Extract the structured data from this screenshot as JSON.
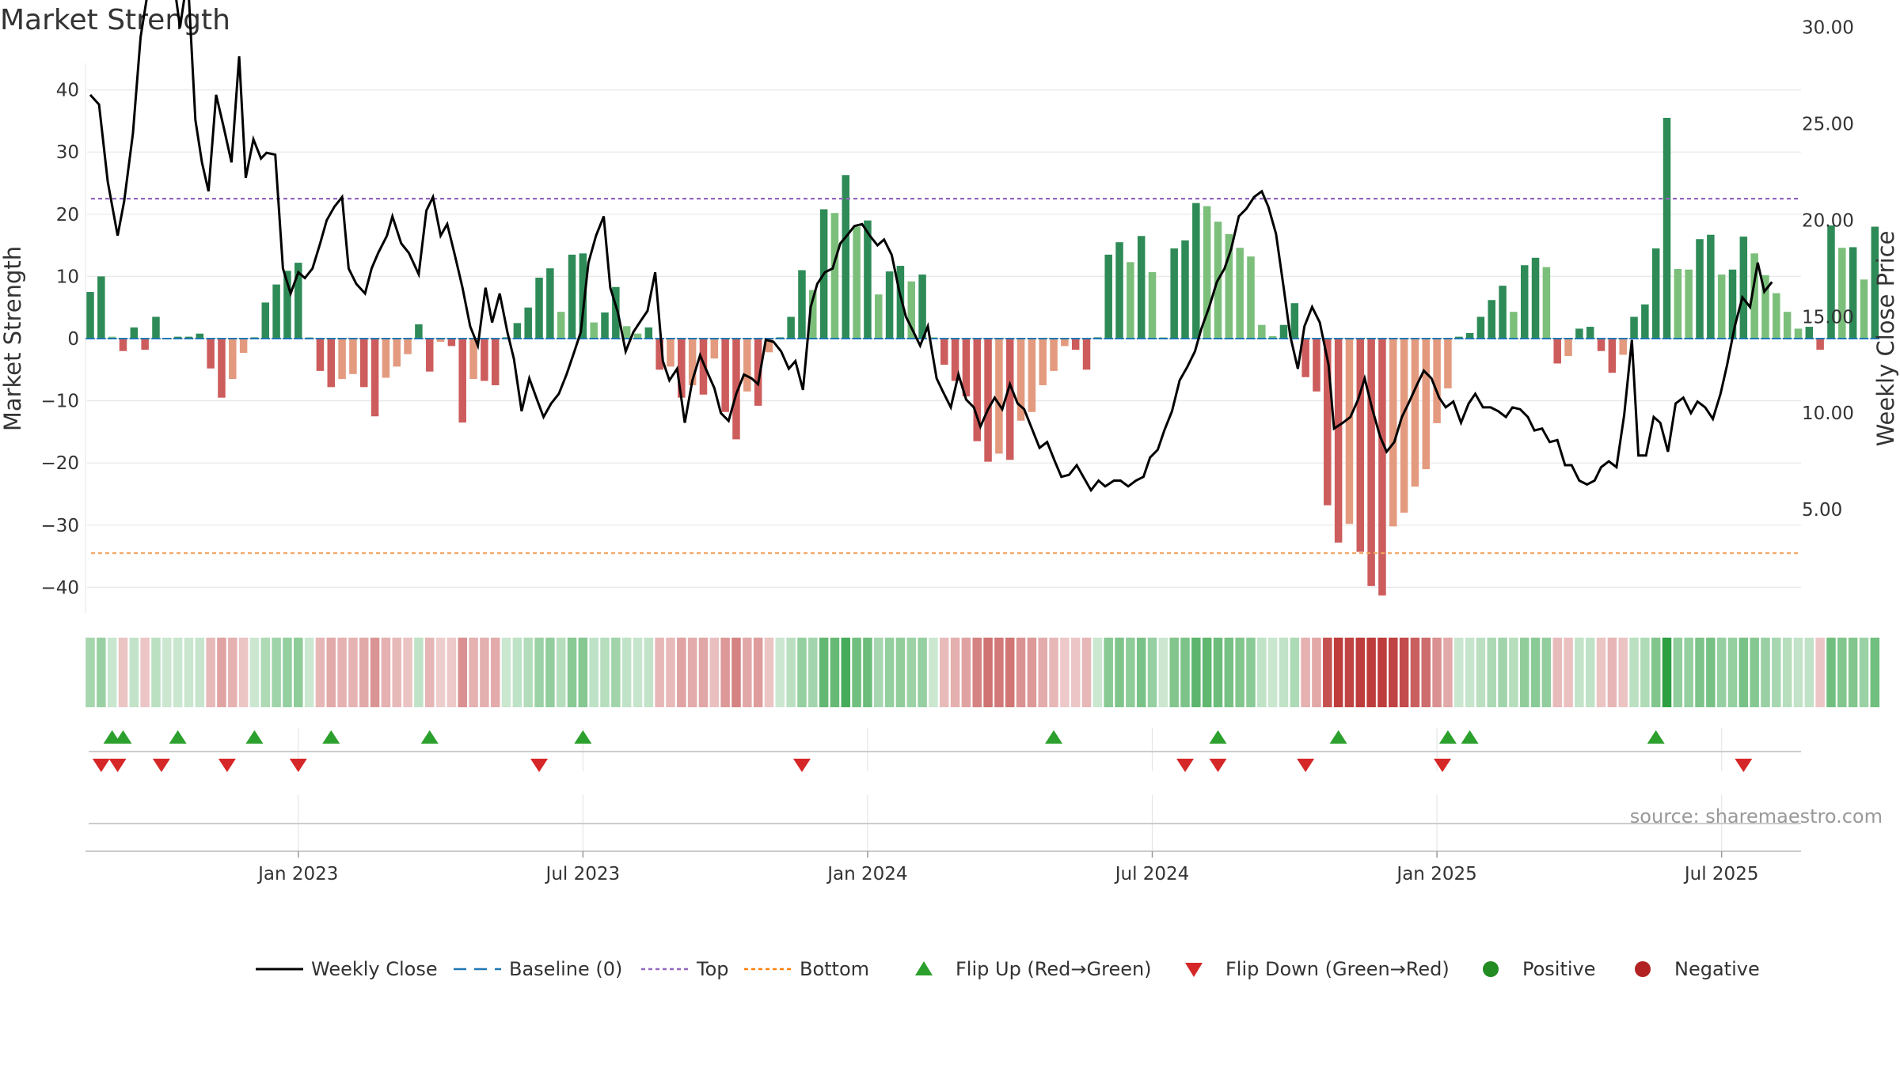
{
  "chart_data": {
    "type": "bar+line",
    "title": "Market Strength",
    "ylabel_left": "Market Strength",
    "ylabel_right": "Weekly Close Price",
    "ylim_left": [
      -45,
      45
    ],
    "ylim_right": [
      3.8,
      34.0
    ],
    "yticks_left": [
      40,
      30,
      20,
      10,
      0,
      -10,
      -20,
      -30,
      -40
    ],
    "yticks_left_labels": [
      "40",
      "30",
      "20",
      "10",
      "0",
      "−10",
      "−20",
      "−30",
      "−40"
    ],
    "yticks_right": [
      30,
      25,
      20,
      15,
      10,
      5
    ],
    "yticks_right_labels": [
      "30.00",
      "25.00",
      "20.00",
      "15.00",
      "10.00",
      "5.00"
    ],
    "x_tick_labels": [
      "Jan 2023",
      "Jul 2023",
      "Jan 2024",
      "Jul 2024",
      "Jan 2025",
      "Jul 2025"
    ],
    "x_tick_week_index": [
      19,
      45,
      71,
      97,
      123,
      149
    ],
    "top_level": 22.5,
    "bottom_level": -34.5,
    "market_strength": [
      7.5,
      10,
      0.3,
      -2,
      1.8,
      -1.8,
      3.5,
      0,
      0.3,
      0.3,
      0.8,
      -4.8,
      -9.5,
      -6.5,
      -2.3,
      0.2,
      5.8,
      8.7,
      10.9,
      12.2,
      0.2,
      -5.2,
      -7.8,
      -6.5,
      -5.7,
      -7.8,
      -12.5,
      -6.3,
      -4.5,
      -2.5,
      2.3,
      -5.3,
      -0.5,
      -1.2,
      -13.5,
      -6.5,
      -6.8,
      -7.5,
      0.2,
      2.5,
      5,
      9.8,
      11.3,
      4.3,
      13.5,
      13.7,
      2.6,
      4.2,
      8.3,
      2,
      0.8,
      1.8,
      -5,
      -4.5,
      -9.5,
      -7.5,
      -9,
      -3.2,
      -11.8,
      -16.2,
      -8.5,
      -10.8,
      -2.2,
      0.2,
      3.5,
      11,
      7.8,
      20.8,
      20.2,
      26.3,
      18,
      19,
      7.1,
      10.8,
      11.7,
      9.2,
      10.3,
      0.2,
      -4.2,
      -6.8,
      -9.3,
      -16.5,
      -19.8,
      -18.5,
      -19.5,
      -13.2,
      -11.8,
      -7.5,
      -5.2,
      -1.2,
      -1.8,
      -5,
      0.2,
      13.5,
      15.5,
      12.3,
      16.5,
      10.7,
      0.2,
      14.5,
      15.8,
      21.8,
      21.3,
      18.8,
      16.8,
      14.6,
      13.2,
      2.2,
      0.4,
      2.2,
      5.7,
      -6.2,
      -8.5,
      -26.8,
      -32.8,
      -29.8,
      -34.3,
      -39.8,
      -41.3,
      -30.2,
      -28,
      -23.8,
      -21,
      -13.6,
      -8,
      0.3,
      0.9,
      3.5,
      6.2,
      8.5,
      4.3,
      11.8,
      13,
      11.5,
      -4,
      -2.8,
      1.6,
      1.9,
      -2,
      -5.5,
      -2.6,
      3.5,
      5.5,
      14.5,
      35.5,
      11.2,
      11.1,
      16,
      16.7,
      10.3,
      11.1,
      16.4,
      13.7,
      10.2,
      7.3,
      4.3,
      1.6,
      1.9,
      -1.8,
      18.2,
      14.6,
      14.7,
      9.5,
      18
    ],
    "weekly_close_x": [
      0,
      0.8,
      1.6,
      2.5,
      3.1,
      3.9,
      4.6,
      5.3,
      6.2,
      6.9,
      7.6,
      8.2,
      8.9,
      9.6,
      10.2,
      10.8,
      11.5,
      12.2,
      12.9,
      13.6,
      14.2,
      14.9,
      15.6,
      16.1,
      16.9,
      17.6,
      18.3,
      19,
      19.6,
      20.3,
      21,
      21.6,
      22.3,
      23,
      23.6,
      24.3,
      25.1,
      25.7,
      26.3,
      27.1,
      27.6,
      28.4,
      29.1,
      30,
      30.7,
      31.3,
      32,
      32.6,
      33.3,
      34,
      34.7,
      35.4,
      36.1,
      36.7,
      37.4,
      38.1,
      38.7,
      39.4,
      40.1,
      40.8,
      41.4,
      42.1,
      42.8,
      43.5,
      44.1,
      44.8,
      45.5,
      46.2,
      46.9,
      47.5,
      48.2,
      48.9,
      49.6,
      50.3,
      50.9,
      51.6,
      52.3,
      52.9,
      53.6,
      54.3,
      55,
      55.7,
      56.3,
      57,
      57.6,
      58.3,
      59,
      59.7,
      60.4,
      61,
      61.7,
      62.4,
      63.1,
      63.8,
      64.4,
      65.1,
      65.8,
      66.4,
      67.1,
      67.8,
      68.5,
      69.1,
      69.8,
      70.5,
      71.2,
      71.9,
      72.5,
      73.2,
      73.9,
      74.5,
      75.2,
      75.8,
      76.5,
      77.3,
      77.8,
      78.6,
      79.3,
      80,
      80.7,
      81.3,
      82,
      82.6,
      83.3,
      84,
      84.7,
      85.3,
      86,
      86.7,
      87.4,
      88.1,
      88.7,
      89.4,
      90.1,
      90.7,
      91.4,
      92.1,
      92.7,
      93.5,
      94.1,
      94.8,
      95.5,
      96.2,
      96.8,
      97.5,
      98.1,
      98.8,
      99.5,
      100.2,
      100.9,
      101.5,
      102.2,
      102.9,
      103.6,
      104.2,
      104.9,
      105.6,
      106.3,
      107,
      107.6,
      108.3,
      109,
      109.6,
      110.3,
      110.9,
      111.6,
      112.3,
      113.1,
      113.6,
      114.4,
      115.1,
      115.8,
      116.4,
      117.1,
      117.8,
      118.4,
      119.1,
      119.8,
      120.4,
      121.2,
      121.8,
      122.5,
      123.2,
      123.8,
      124.5,
      125.2,
      125.9,
      126.5,
      127.2,
      127.9,
      128.6,
      129.3,
      129.9,
      130.6,
      131.3,
      131.9,
      132.6,
      133.3,
      134,
      134.7,
      135.3,
      136,
      136.7,
      137.4,
      138,
      138.7,
      139.4,
      140.1,
      140.8,
      141.4,
      142.1,
      142.8,
      143.4,
      144.1,
      144.8,
      145.5,
      146.2,
      146.8,
      147.5,
      148.2,
      148.9,
      149.5,
      150.2,
      150.9,
      151.6,
      152.3,
      152.9,
      153.6,
      154.3,
      154.9,
      155.6
    ],
    "weekly_close": [
      26.5,
      26,
      22,
      19.2,
      21,
      24.5,
      29.5,
      32,
      33.2,
      33.2,
      32.5,
      30,
      32.7,
      25.2,
      23,
      21.5,
      26.5,
      24.8,
      23,
      28.5,
      22.2,
      24.2,
      23.2,
      23.5,
      23.4,
      17.5,
      16.2,
      17.3,
      17,
      17.5,
      18.8,
      20,
      20.7,
      21.2,
      17.5,
      16.7,
      16.2,
      17.5,
      18.3,
      19.2,
      20.2,
      18.8,
      18.3,
      17.2,
      20.5,
      21.2,
      19.2,
      19.8,
      18.2,
      16.5,
      14.5,
      13.5,
      16.5,
      14.7,
      16.2,
      14.2,
      12.8,
      10.1,
      11.8,
      10.7,
      9.8,
      10.5,
      11,
      12,
      13,
      14.2,
      17.8,
      19.2,
      20.2,
      16.5,
      15.2,
      13.2,
      14.2,
      14.8,
      15.3,
      17.3,
      12.7,
      11.7,
      12.3,
      9.5,
      11.7,
      13,
      12.2,
      11.3,
      10,
      9.6,
      11,
      12,
      11.8,
      11.5,
      13.8,
      13.7,
      13.2,
      12.3,
      12.7,
      11.2,
      15.5,
      16.7,
      17.3,
      17.5,
      18.8,
      19.2,
      19.7,
      19.8,
      19.2,
      18.7,
      19,
      18.2,
      16.3,
      15,
      14.2,
      13.5,
      14.5,
      11.8,
      11.2,
      10.3,
      12,
      10.7,
      10.3,
      9.3,
      10.2,
      10.8,
      10.2,
      11.5,
      10.5,
      10.2,
      9.2,
      8.2,
      8.5,
      7.5,
      6.7,
      6.8,
      7.3,
      6.7,
      6,
      6.5,
      6.2,
      6.5,
      6.5,
      6.2,
      6.5,
      6.7,
      7.7,
      8.1,
      9.1,
      10.1,
      11.7,
      12.4,
      13.2,
      14.4,
      15.5,
      16.8,
      17.5,
      18.5,
      20.2,
      20.6,
      21.2,
      21.5,
      20.7,
      19.3,
      16.5,
      14,
      12.3,
      14.5,
      15.5,
      14.7,
      12.5,
      9.2,
      9.5,
      9.8,
      10.7,
      11.8,
      10.2,
      8.8,
      8,
      8.5,
      9.8,
      10.5,
      11.5,
      12.2,
      11.8,
      10.8,
      10.3,
      10.6,
      9.5,
      10.5,
      11,
      10.3,
      10.3,
      10.1,
      9.8,
      10.3,
      10.2,
      9.8,
      9.1,
      9.2,
      8.5,
      8.6,
      7.3,
      7.3,
      6.5,
      6.3,
      6.5,
      7.2,
      7.5,
      7.2,
      9.9,
      13.8,
      7.8,
      7.8,
      9.8,
      9.5,
      8,
      10.5,
      10.8,
      10,
      10.6,
      10.3,
      9.7,
      11,
      12.5,
      14.5,
      16,
      15.5,
      17.8,
      16.3,
      16.8
    ],
    "strength_strip_color_scale": "red (negative) to green (positive), intensity by magnitude",
    "flip_up_week_index": [
      2,
      3,
      8,
      15,
      22,
      31,
      45,
      88,
      103,
      114,
      124,
      126,
      143
    ],
    "flip_down_week_index": [
      1,
      2.5,
      6.5,
      12.5,
      19,
      41,
      65,
      100,
      103,
      111,
      123.5,
      151
    ],
    "legend": [
      {
        "label": "Weekly Close",
        "style": "line",
        "color": "#000000"
      },
      {
        "label": "Baseline (0)",
        "style": "dashed",
        "color": "#1f77b4"
      },
      {
        "label": "Top",
        "style": "dotted",
        "color": "#9467bd"
      },
      {
        "label": "Bottom",
        "style": "dotted",
        "color": "#ff7f0e"
      },
      {
        "label": "Flip Up (Red→Green)",
        "style": "triangle-up",
        "color": "#2ca02c"
      },
      {
        "label": "Flip Down (Green→Red)",
        "style": "triangle-down",
        "color": "#d62728"
      },
      {
        "label": "Positive",
        "style": "circle",
        "color": "#228B22"
      },
      {
        "label": "Negative",
        "style": "circle",
        "color": "#B22222"
      }
    ],
    "legend_placement": "bottom-center"
  },
  "source": "source: sharemaestro.com"
}
